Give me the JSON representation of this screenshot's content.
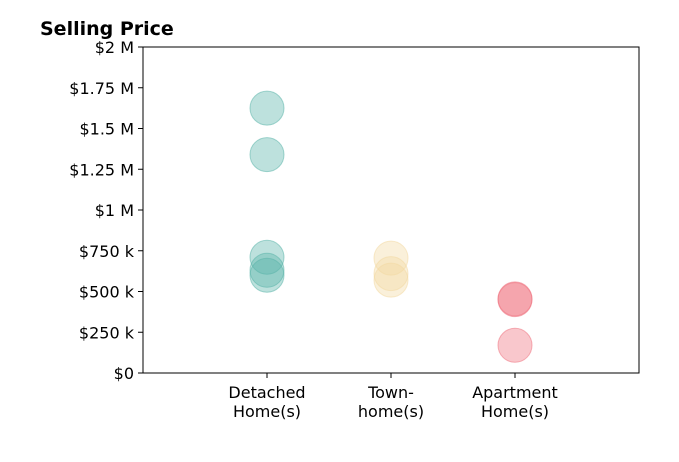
{
  "chart_data": {
    "type": "scatter",
    "title": "Selling Price",
    "xlabel": "",
    "ylabel": "",
    "ylim": [
      0,
      2000000
    ],
    "grid": false,
    "legend": "none",
    "y_ticks": [
      {
        "value": 0,
        "label": "$0"
      },
      {
        "value": 250000,
        "label": "$250 k"
      },
      {
        "value": 500000,
        "label": "$500 k"
      },
      {
        "value": 750000,
        "label": "$750 k"
      },
      {
        "value": 1000000,
        "label": "$1 M"
      },
      {
        "value": 1250000,
        "label": "$1.25 M"
      },
      {
        "value": 1500000,
        "label": "$1.5 M"
      },
      {
        "value": 1750000,
        "label": "$1.75 M"
      },
      {
        "value": 2000000,
        "label": "$2 M"
      }
    ],
    "categories": [
      {
        "label_lines": [
          "Detached",
          "Home(s)"
        ],
        "color": "#5bb5aa",
        "values": [
          1625000,
          1340000,
          710000,
          630000,
          600000
        ]
      },
      {
        "label_lines": [
          "Town-",
          "home(s)"
        ],
        "color": "#f3d9a3",
        "values": [
          705000,
          610000,
          570000
        ]
      },
      {
        "label_lines": [
          "Apartment",
          "Home(s)"
        ],
        "color": "#ef7380",
        "values": [
          455000,
          450000,
          170000
        ]
      }
    ]
  }
}
